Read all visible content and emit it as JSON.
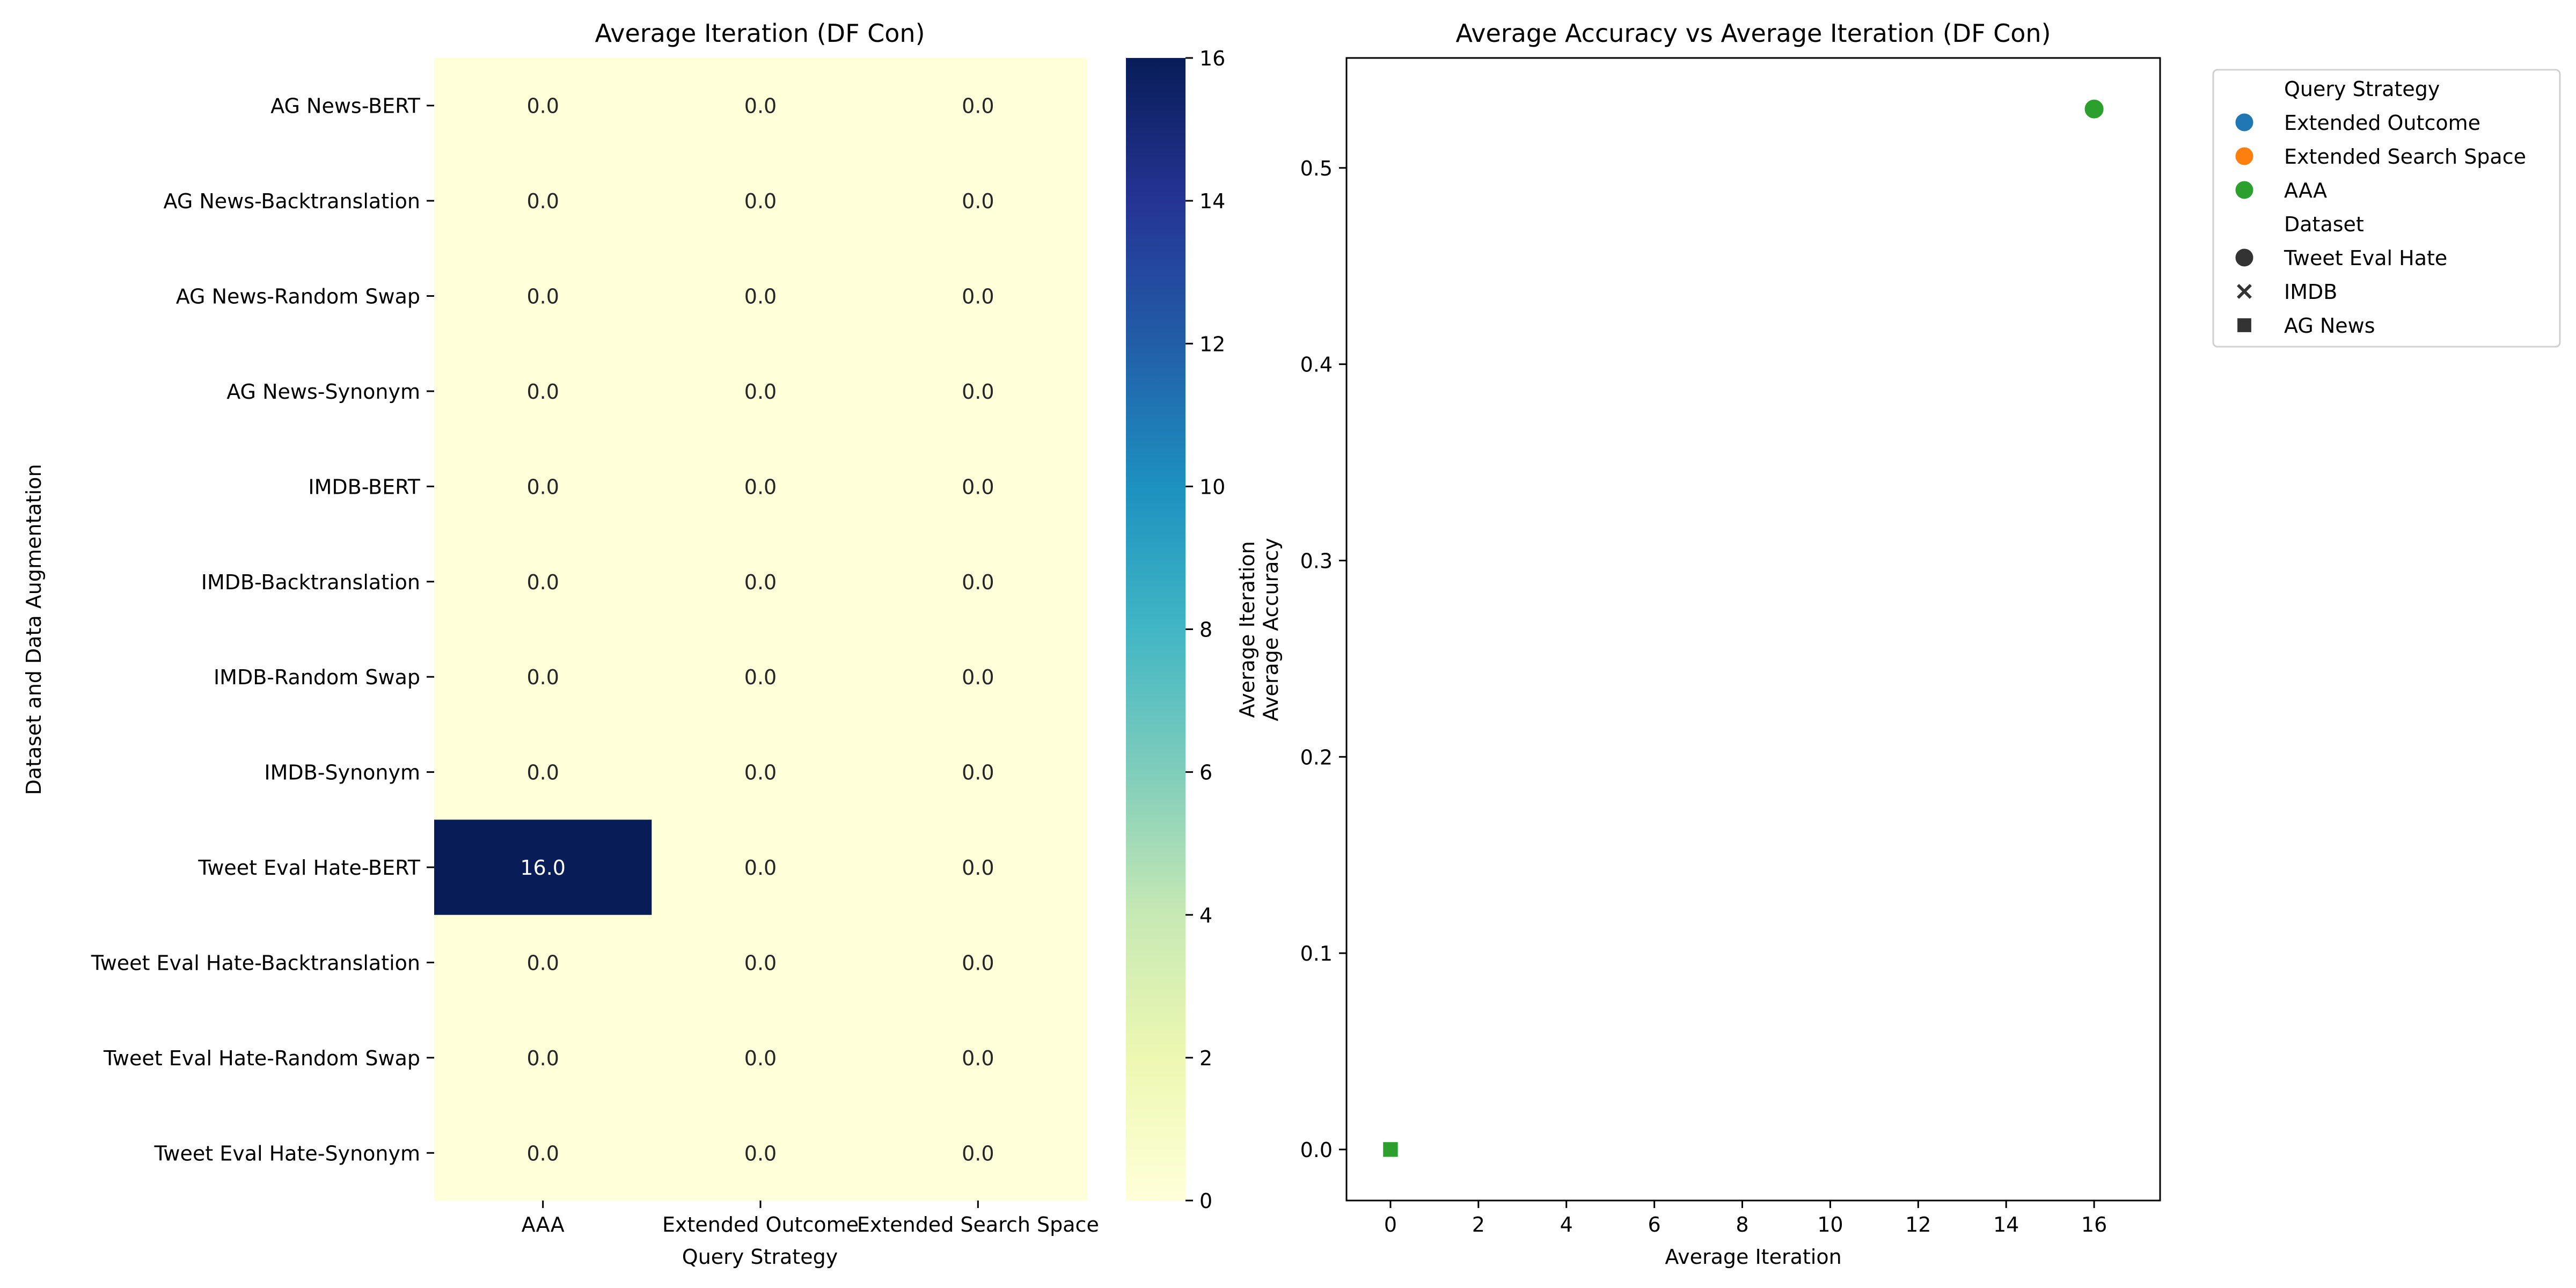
{
  "chart_data": [
    {
      "type": "heatmap",
      "title": "Average Iteration (DF Con)",
      "xlabel": "Query Strategy",
      "ylabel": "Dataset and Data Augmentation",
      "columns": [
        "AAA",
        "Extended Outcome",
        "Extended Search Space"
      ],
      "rows": [
        "AG News-BERT",
        "AG News-Backtranslation",
        "AG News-Random Swap",
        "AG News-Synonym",
        "IMDB-BERT",
        "IMDB-Backtranslation",
        "IMDB-Random Swap",
        "IMDB-Synonym",
        "Tweet Eval Hate-BERT",
        "Tweet Eval Hate-Backtranslation",
        "Tweet Eval Hate-Random Swap",
        "Tweet Eval Hate-Synonym"
      ],
      "values": [
        [
          0.0,
          0.0,
          0.0
        ],
        [
          0.0,
          0.0,
          0.0
        ],
        [
          0.0,
          0.0,
          0.0
        ],
        [
          0.0,
          0.0,
          0.0
        ],
        [
          0.0,
          0.0,
          0.0
        ],
        [
          0.0,
          0.0,
          0.0
        ],
        [
          0.0,
          0.0,
          0.0
        ],
        [
          0.0,
          0.0,
          0.0
        ],
        [
          16.0,
          0.0,
          0.0
        ],
        [
          0.0,
          0.0,
          0.0
        ],
        [
          0.0,
          0.0,
          0.0
        ],
        [
          0.0,
          0.0,
          0.0
        ]
      ],
      "colorbar": {
        "labels": [
          "Average Iteration",
          "Average Accuracy"
        ],
        "range": [
          0,
          16
        ],
        "ticks": [
          0,
          2,
          4,
          6,
          8,
          10,
          12,
          14,
          16
        ],
        "colormap": "YlGnBu",
        "color_stops": [
          "#ffffd9",
          "#edf8b1",
          "#c7e9b4",
          "#7fcdbb",
          "#41b6c4",
          "#1d91c0",
          "#225ea8",
          "#253494",
          "#081d58"
        ]
      }
    },
    {
      "type": "scatter",
      "title": "Average Accuracy vs Average Iteration (DF Con)",
      "xlabel": "Average Iteration",
      "ylabel": "",
      "xlim": [
        -1,
        17.5
      ],
      "ylim": [
        -0.026,
        0.556
      ],
      "xticks": [
        0,
        2,
        4,
        6,
        8,
        10,
        12,
        14,
        16
      ],
      "yticks": [
        0.0,
        0.1,
        0.2,
        0.3,
        0.4,
        0.5
      ],
      "points": [
        {
          "x": 16,
          "y": 0.53,
          "query_strategy": "AAA",
          "dataset": "Tweet Eval Hate"
        },
        {
          "x": 0,
          "y": 0.0,
          "query_strategy": "AAA",
          "dataset": "IMDB"
        },
        {
          "x": 0,
          "y": 0.0,
          "query_strategy": "AAA",
          "dataset": "AG News"
        }
      ],
      "legend": {
        "placement": "outside-right",
        "sections": [
          {
            "title": "Query Strategy",
            "entries": [
              {
                "label": "Extended Outcome",
                "color": "#1f77b4",
                "marker": "circle"
              },
              {
                "label": "Extended Search Space",
                "color": "#ff7f0e",
                "marker": "circle"
              },
              {
                "label": "AAA",
                "color": "#2ca02c",
                "marker": "circle"
              }
            ]
          },
          {
            "title": "Dataset",
            "entries": [
              {
                "label": "Tweet Eval Hate",
                "color": "#333333",
                "marker": "circle"
              },
              {
                "label": "IMDB",
                "color": "#333333",
                "marker": "x"
              },
              {
                "label": "AG News",
                "color": "#333333",
                "marker": "square"
              }
            ]
          }
        ]
      }
    }
  ]
}
